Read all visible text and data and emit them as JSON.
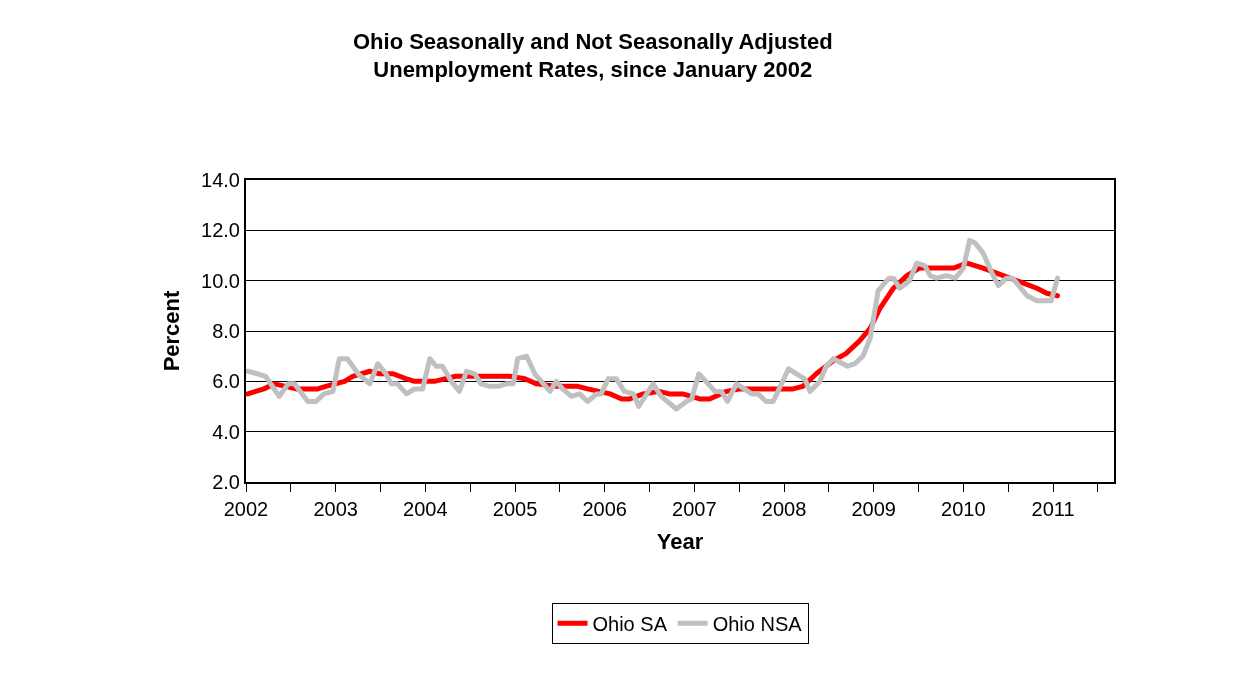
{
  "chart_data": {
    "type": "line",
    "title": "Ohio Seasonally and Not Seasonally Adjusted\nUnemployment Rates, since January 2002",
    "xlabel": "Year",
    "ylabel": "Percent",
    "xlim": [
      2002,
      2011.68
    ],
    "xticks": [
      2002,
      {
        "value": 2002.5,
        "label": null
      },
      2003,
      {
        "value": 2003.5,
        "label": null
      },
      2004,
      {
        "value": 2004.5,
        "label": null
      },
      2005,
      {
        "value": 2005.5,
        "label": null
      },
      2006,
      {
        "value": 2006.5,
        "label": null
      },
      2007,
      {
        "value": 2007.5,
        "label": null
      },
      2008,
      {
        "value": 2008.5,
        "label": null
      },
      2009,
      {
        "value": 2009.5,
        "label": null
      },
      2010,
      {
        "value": 2010.5,
        "label": null
      },
      2011,
      {
        "value": 2011.5,
        "label": null
      }
    ],
    "ylim": [
      2,
      14
    ],
    "yticks": [
      {
        "value": 2,
        "label": "2.0"
      },
      {
        "value": 4,
        "label": "4.0"
      },
      {
        "value": 6,
        "label": "6.0"
      },
      {
        "value": 8,
        "label": "8.0"
      },
      {
        "value": 10,
        "label": "10.0"
      },
      {
        "value": 12,
        "label": "12.0"
      },
      {
        "value": 14,
        "label": "14.0"
      }
    ],
    "grid": "y",
    "legend": "bottom",
    "marker": "none",
    "line_style": "solid",
    "series": [
      {
        "name": "Ohio SA",
        "color": "#ff0000",
        "x": [
          2002.02,
          2002.2,
          2002.32,
          2002.56,
          2002.67,
          2002.8,
          2002.89,
          2003.1,
          2003.19,
          2003.38,
          2003.49,
          2003.64,
          2003.79,
          2003.88,
          2004.1,
          2004.34,
          2004.94,
          2005.11,
          2005.24,
          2005.46,
          2005.7,
          2005.81,
          2006.06,
          2006.19,
          2006.28,
          2006.43,
          2006.61,
          2006.72,
          2006.87,
          2007.06,
          2007.17,
          2007.36,
          2007.51,
          2008.1,
          2008.21,
          2008.36,
          2008.54,
          2008.69,
          2008.84,
          2008.96,
          2009.07,
          2009.22,
          2009.37,
          2009.51,
          2009.89,
          2010.04,
          2010.22,
          2010.37,
          2010.52,
          2010.67,
          2010.82,
          2010.93,
          2011.05
        ],
        "values": [
          5.5,
          5.7,
          5.9,
          5.7,
          5.7,
          5.7,
          5.8,
          6.0,
          6.2,
          6.4,
          6.3,
          6.3,
          6.1,
          6.0,
          6.0,
          6.2,
          6.2,
          6.1,
          5.9,
          5.8,
          5.8,
          5.7,
          5.5,
          5.3,
          5.3,
          5.5,
          5.6,
          5.5,
          5.5,
          5.3,
          5.3,
          5.6,
          5.7,
          5.7,
          5.8,
          6.3,
          6.8,
          7.1,
          7.6,
          8.1,
          8.9,
          9.7,
          10.2,
          10.5,
          10.5,
          10.7,
          10.5,
          10.3,
          10.1,
          9.9,
          9.7,
          9.5,
          9.4
        ]
      },
      {
        "name": "Ohio NSA",
        "color": "#c0c0c0",
        "x": [
          2002.02,
          2002.13,
          2002.22,
          2002.37,
          2002.47,
          2002.54,
          2002.69,
          2002.78,
          2002.87,
          2002.97,
          2003.04,
          2003.13,
          2003.25,
          2003.38,
          2003.47,
          2003.56,
          2003.62,
          2003.69,
          2003.79,
          2003.88,
          2003.97,
          2004.05,
          2004.12,
          2004.19,
          2004.29,
          2004.38,
          2004.46,
          2004.55,
          2004.62,
          2004.72,
          2004.81,
          2004.9,
          2004.98,
          2005.03,
          2005.13,
          2005.22,
          2005.39,
          2005.46,
          2005.53,
          2005.63,
          2005.72,
          2005.81,
          2005.91,
          2005.96,
          2006.04,
          2006.13,
          2006.22,
          2006.32,
          2006.38,
          2006.54,
          2006.63,
          2006.8,
          2006.91,
          2006.97,
          2007.05,
          2007.23,
          2007.3,
          2007.37,
          2007.47,
          2007.64,
          2007.71,
          2007.8,
          2007.88,
          2008.05,
          2008.14,
          2008.23,
          2008.29,
          2008.4,
          2008.47,
          2008.55,
          2008.71,
          2008.79,
          2008.88,
          2008.96,
          2009.05,
          2009.17,
          2009.22,
          2009.29,
          2009.4,
          2009.48,
          2009.57,
          2009.63,
          2009.7,
          2009.81,
          2009.91,
          2010.0,
          2010.07,
          2010.13,
          2010.22,
          2010.32,
          2010.39,
          2010.48,
          2010.55,
          2010.71,
          2010.82,
          2010.98,
          2011.05
        ],
        "values": [
          6.4,
          6.3,
          6.2,
          5.4,
          5.9,
          5.9,
          5.2,
          5.2,
          5.5,
          5.6,
          6.9,
          6.9,
          6.3,
          5.9,
          6.7,
          6.3,
          5.9,
          5.9,
          5.5,
          5.7,
          5.7,
          6.9,
          6.6,
          6.6,
          6.0,
          5.6,
          6.4,
          6.3,
          5.9,
          5.8,
          5.8,
          5.9,
          5.9,
          6.9,
          7.0,
          6.3,
          5.6,
          6.0,
          5.7,
          5.4,
          5.5,
          5.2,
          5.5,
          5.5,
          6.1,
          6.1,
          5.6,
          5.5,
          5.0,
          5.9,
          5.4,
          4.9,
          5.2,
          5.3,
          6.3,
          5.6,
          5.6,
          5.2,
          5.9,
          5.5,
          5.5,
          5.2,
          5.2,
          6.5,
          6.3,
          6.1,
          5.6,
          6.0,
          6.6,
          6.9,
          6.6,
          6.7,
          7.0,
          7.7,
          9.6,
          10.1,
          10.1,
          9.7,
          10.0,
          10.7,
          10.6,
          10.2,
          10.1,
          10.2,
          10.1,
          10.5,
          11.6,
          11.5,
          11.1,
          10.3,
          9.8,
          10.1,
          10.1,
          9.4,
          9.2,
          9.2,
          10.1
        ]
      }
    ]
  }
}
